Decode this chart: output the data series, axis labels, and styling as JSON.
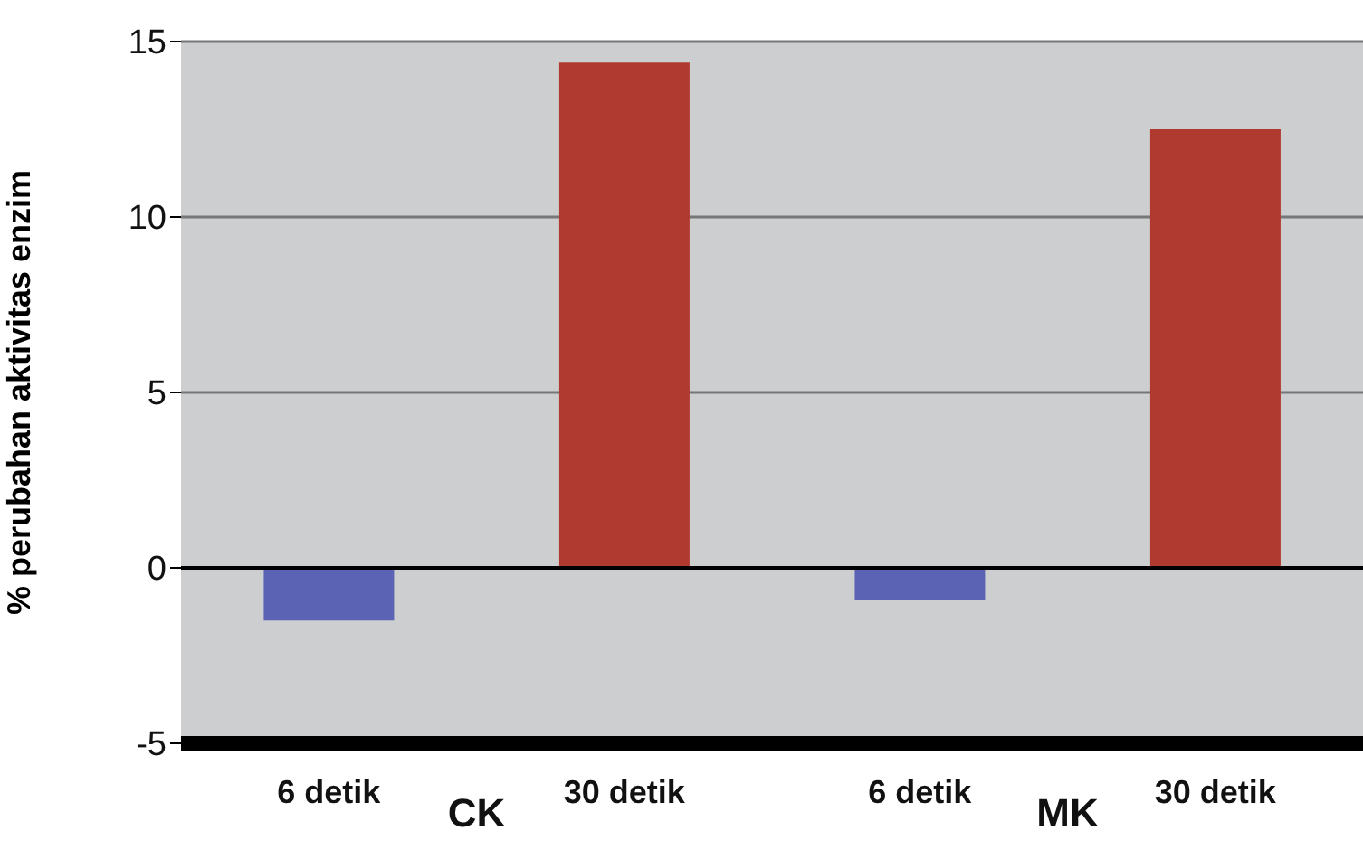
{
  "chart_data": {
    "type": "bar",
    "ylabel": "% perubahan aktivitas enzim",
    "categories": [
      "6 detik",
      "30 detik",
      "6 detik",
      "30 detik"
    ],
    "values": [
      -1.5,
      14.4,
      -0.9,
      12.5
    ],
    "colors": [
      "#5b64b4",
      "#b03a30",
      "#5b64b4",
      "#b03a30"
    ],
    "ylim": [
      -5,
      15
    ],
    "yticks": [
      -5,
      0,
      5,
      10,
      15
    ],
    "grid": "y",
    "ref_lines": [
      {
        "axis": "y",
        "value": 0,
        "color": "#000000"
      }
    ],
    "annotations": [
      "CK",
      "MK"
    ]
  }
}
